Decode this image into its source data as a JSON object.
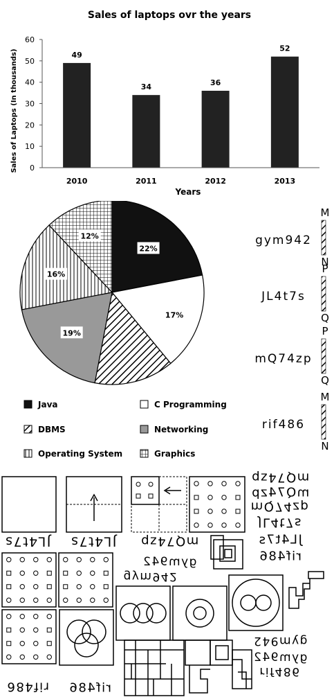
{
  "chart_data": [
    {
      "type": "bar",
      "title": "Sales of laptops ovr the years",
      "xlabel": "Years",
      "ylabel": "Sales of Laptops (In thousands)",
      "categories": [
        "2010",
        "2011",
        "2012",
        "2013"
      ],
      "values": [
        49,
        34,
        36,
        52
      ],
      "data_labels": [
        "49",
        "34",
        "36",
        "52"
      ],
      "ylim": [
        0,
        60
      ],
      "yticks": [
        "0",
        "10",
        "20",
        "30",
        "40",
        "50",
        "60"
      ],
      "grid": false,
      "bar_color": "#222222"
    },
    {
      "type": "pie",
      "slices": [
        {
          "name": "Java",
          "value": 22,
          "label": "22%",
          "pattern": "solid-black"
        },
        {
          "name": "C Programming",
          "value": 17,
          "label": "17%",
          "pattern": "white"
        },
        {
          "name": "DBMS",
          "value": 14,
          "label": "",
          "pattern": "diagonal-hatch"
        },
        {
          "name": "Networking",
          "value": 19,
          "label": "19%",
          "pattern": "solid-gray"
        },
        {
          "name": "Operating System",
          "value": 16,
          "label": "16%",
          "pattern": "vertical-lines"
        },
        {
          "name": "Graphics",
          "value": 12,
          "label": "12%",
          "pattern": "grid"
        }
      ],
      "legend": [
        "Java",
        "C Programming",
        "DBMS",
        "Networking",
        "Operating System",
        "Graphics"
      ],
      "legend_position": "bottom"
    }
  ],
  "code_series": {
    "items": [
      {
        "code": "gym942",
        "top": "M",
        "bottom": "N"
      },
      {
        "code": "JL4t7s",
        "top": "P",
        "bottom": "Q"
      },
      {
        "code": "mQ74zp",
        "top": "P",
        "bottom": "Q"
      },
      {
        "code": "rif486",
        "top": "M",
        "bottom": "N"
      }
    ]
  },
  "mirror_texts": {
    "m1": "mQ74zp",
    "m2": "mQ74zp",
    "m3": "mQ74zp",
    "m4": "JL4t7s",
    "m5": "JL4t7s",
    "m6": "rif486",
    "m7": "JL4t7s",
    "m8": "JL4t7s",
    "m9": "mQ74zp",
    "m10": "gym942",
    "m11": "gym942",
    "m12": "gym942",
    "m13": "gym942",
    "m14": "rif486",
    "m15": "rif486",
    "m16": "rif486"
  }
}
